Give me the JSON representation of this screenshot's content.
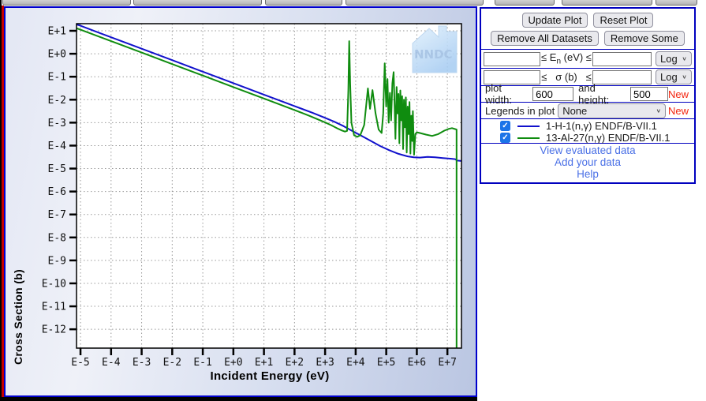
{
  "chart_data": {
    "type": "line",
    "title": "",
    "xlabel": "Incident Energy (eV)",
    "ylabel": "Cross Section (b)",
    "x_scale": "log",
    "y_scale": "log",
    "grid": "dotted",
    "legend_position": "none",
    "watermark": "NNDC",
    "xlim_log": [
      -5.13,
      7.46
    ],
    "ylim_log": [
      -12.82,
      1.31
    ],
    "x_tick_labels": [
      "E-5",
      "E-4",
      "E-3",
      "E-2",
      "E-1",
      "E+0",
      "E+1",
      "E+2",
      "E+3",
      "E+4",
      "E+5",
      "E+6",
      "E+7"
    ],
    "x_tick_logs": [
      -5,
      -4,
      -3,
      -2,
      -1,
      0,
      1,
      2,
      3,
      4,
      5,
      6,
      7
    ],
    "y_tick_labels": [
      "E+1",
      "E+0",
      "E-1",
      "E-2",
      "E-3",
      "E-4",
      "E-5",
      "E-6",
      "E-7",
      "E-8",
      "E-9",
      "E-10",
      "E-11",
      "E-12"
    ],
    "y_tick_logs": [
      1,
      0,
      -1,
      -2,
      -3,
      -4,
      -5,
      -6,
      -7,
      -8,
      -9,
      -10,
      -11,
      -12
    ],
    "series": [
      {
        "name": "1-H-1(n,γ) ENDF/B-VII.1",
        "color": "#1111cc",
        "points": [
          [
            -5.13,
            1.28
          ],
          [
            -5,
            1.22
          ],
          [
            -4,
            0.72
          ],
          [
            -3,
            0.22
          ],
          [
            -2,
            -0.28
          ],
          [
            -1,
            -0.78
          ],
          [
            0,
            -1.28
          ],
          [
            1,
            -1.78
          ],
          [
            2,
            -2.28
          ],
          [
            2.6,
            -2.58
          ],
          [
            3,
            -2.79
          ],
          [
            3.3,
            -2.96
          ],
          [
            3.6,
            -3.15
          ],
          [
            3.9,
            -3.37
          ],
          [
            4.2,
            -3.58
          ],
          [
            4.5,
            -3.8
          ],
          [
            4.8,
            -4.02
          ],
          [
            5.1,
            -4.2
          ],
          [
            5.4,
            -4.36
          ],
          [
            5.7,
            -4.47
          ],
          [
            5.9,
            -4.51
          ],
          [
            6.1,
            -4.52
          ],
          [
            6.35,
            -4.49
          ],
          [
            6.6,
            -4.51
          ],
          [
            6.85,
            -4.54
          ],
          [
            7.1,
            -4.57
          ],
          [
            7.25,
            -4.59
          ],
          [
            7.32,
            -4.65
          ],
          [
            7.45,
            -4.67
          ]
        ]
      },
      {
        "name": "13-Al-27(n,γ) ENDF/B-VII.1",
        "color": "#0f8c0f",
        "points": [
          [
            -5.13,
            1.11
          ],
          [
            -5,
            1.05
          ],
          [
            -4,
            0.55
          ],
          [
            -3,
            0.05
          ],
          [
            -2,
            -0.45
          ],
          [
            -1,
            -0.95
          ],
          [
            0,
            -1.45
          ],
          [
            1,
            -1.95
          ],
          [
            2,
            -2.45
          ],
          [
            2.5,
            -2.71
          ],
          [
            3,
            -2.99
          ],
          [
            3.2,
            -3.11
          ],
          [
            3.4,
            -3.25
          ],
          [
            3.55,
            -3.34
          ],
          [
            3.65,
            -3.39
          ],
          [
            3.72,
            -3.36
          ],
          [
            3.76,
            -1.6
          ],
          [
            3.79,
            0.55
          ],
          [
            3.82,
            -1.3
          ],
          [
            3.86,
            -3.0
          ],
          [
            3.95,
            -3.55
          ],
          [
            4.05,
            -3.62
          ],
          [
            4.15,
            -3.55
          ],
          [
            4.28,
            -3.1
          ],
          [
            4.4,
            -1.51
          ],
          [
            4.47,
            -2.4
          ],
          [
            4.55,
            -1.58
          ],
          [
            4.65,
            -2.6
          ],
          [
            4.75,
            -3.3
          ],
          [
            4.85,
            -3.45
          ],
          [
            4.9,
            -2.6
          ],
          [
            4.95,
            -0.42
          ],
          [
            5.0,
            -2.3
          ],
          [
            5.04,
            -1.1
          ],
          [
            5.08,
            -3.0
          ],
          [
            5.12,
            -1.7
          ],
          [
            5.16,
            -2.9
          ],
          [
            5.2,
            -1.3
          ],
          [
            5.24,
            -0.8
          ],
          [
            5.27,
            -2.1
          ],
          [
            5.3,
            -3.7
          ],
          [
            5.34,
            -1.45
          ],
          [
            5.37,
            -2.6
          ],
          [
            5.4,
            -1.75
          ],
          [
            5.43,
            -3.9
          ],
          [
            5.46,
            -1.6
          ],
          [
            5.49,
            -2.9
          ],
          [
            5.52,
            -1.85
          ],
          [
            5.55,
            -4.15
          ],
          [
            5.58,
            -2.0
          ],
          [
            5.61,
            -3.2
          ],
          [
            5.64,
            -1.9
          ],
          [
            5.67,
            -4.3
          ],
          [
            5.7,
            -2.3
          ],
          [
            5.73,
            -3.5
          ],
          [
            5.76,
            -2.1
          ],
          [
            5.79,
            -4.35
          ],
          [
            5.82,
            -2.7
          ],
          [
            5.85,
            -3.8
          ],
          [
            5.87,
            -2.5
          ],
          [
            5.91,
            -4.4
          ],
          [
            5.95,
            -3.5
          ],
          [
            6.0,
            -3.42
          ],
          [
            6.1,
            -3.45
          ],
          [
            6.3,
            -3.52
          ],
          [
            6.5,
            -3.58
          ],
          [
            6.7,
            -3.5
          ],
          [
            6.9,
            -3.35
          ],
          [
            7.05,
            -3.27
          ],
          [
            7.15,
            -3.24
          ],
          [
            7.25,
            -3.28
          ],
          [
            7.3,
            -3.3
          ],
          [
            7.3,
            -12.9
          ]
        ]
      }
    ]
  },
  "panel": {
    "buttons": {
      "update": "Update Plot",
      "reset": "Reset Plot",
      "remove_all": "Remove All Datasets",
      "remove_some": "Remove Some"
    },
    "energy_filter": {
      "lhs": "≤ E",
      "subscript": "n",
      "rhs": "(eV) ≤",
      "scale": "Log"
    },
    "sigma_filter": {
      "lhs": "≤",
      "mid": "σ (b)",
      "rhs": "≤",
      "scale": "Log"
    },
    "size_row": {
      "width_label": "plot width:",
      "width_value": "600",
      "height_label": "and height:",
      "height_value": "500",
      "new_label": "New"
    },
    "legends_row": {
      "label": "Legends in plot",
      "value": "None",
      "new_label": "New"
    },
    "datasets": [
      {
        "checked": true,
        "color": "#1111cc",
        "label": "1-H-1(n,γ) ENDF/B-VII.1"
      },
      {
        "checked": true,
        "color": "#0f8c0f",
        "label": "13-Al-27(n,γ) ENDF/B-VII.1"
      }
    ],
    "links": [
      "View evaluated data",
      "Add your data",
      "Help"
    ]
  },
  "icons": {
    "chevron_down": "∨",
    "checkmark": "✓"
  },
  "colors": {
    "panel_border": "#0000bf",
    "plot_border": "#0000cc",
    "link": "#4a70e6",
    "new_badge": "#f3250f",
    "checkbox": "#1b74e8",
    "edge_line": "#c40000"
  }
}
